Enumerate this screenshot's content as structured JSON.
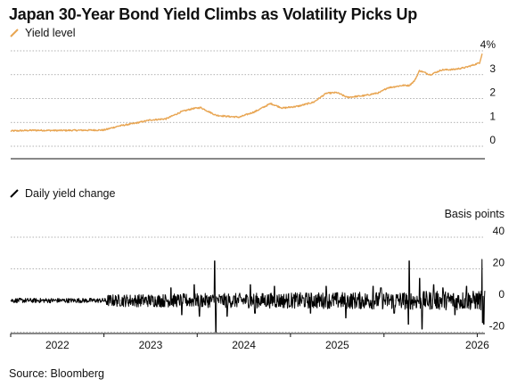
{
  "title": "Japan 30-Year Bond Yield Climbs as Volatility Picks Up",
  "source": "Source: Bloomberg",
  "chart_data": [
    {
      "type": "line",
      "legend": "Yield level",
      "color": "#e8a552",
      "y_ticks": [
        "4%",
        "3",
        "2",
        "1",
        "0"
      ],
      "y_tick_values": [
        4,
        3,
        2,
        1,
        0
      ],
      "ylim": [
        0,
        4
      ],
      "xlim": [
        "2021-01-01",
        "2026-01-31"
      ],
      "series": [
        {
          "points": [
            [
              "2021-01-01",
              0.64
            ],
            [
              "2021-04-01",
              0.67
            ],
            [
              "2021-07-01",
              0.66
            ],
            [
              "2021-10-01",
              0.67
            ],
            [
              "2022-01-01",
              0.68
            ],
            [
              "2022-03-01",
              0.85
            ],
            [
              "2022-05-01",
              0.96
            ],
            [
              "2022-07-01",
              1.1
            ],
            [
              "2022-09-01",
              1.15
            ],
            [
              "2022-11-01",
              1.45
            ],
            [
              "2022-12-15",
              1.58
            ],
            [
              "2023-01-15",
              1.62
            ],
            [
              "2023-03-15",
              1.3
            ],
            [
              "2023-05-01",
              1.25
            ],
            [
              "2023-06-15",
              1.22
            ],
            [
              "2023-08-15",
              1.45
            ],
            [
              "2023-10-15",
              1.79
            ],
            [
              "2023-12-01",
              1.6
            ],
            [
              "2024-02-01",
              1.68
            ],
            [
              "2024-04-01",
              1.85
            ],
            [
              "2024-05-20",
              2.22
            ],
            [
              "2024-07-01",
              2.25
            ],
            [
              "2024-08-10",
              2.05
            ],
            [
              "2024-10-15",
              2.12
            ],
            [
              "2024-12-15",
              2.25
            ],
            [
              "2025-01-15",
              2.45
            ],
            [
              "2025-03-15",
              2.55
            ],
            [
              "2025-04-10",
              2.55
            ],
            [
              "2025-05-01",
              2.75
            ],
            [
              "2025-05-20",
              3.17
            ],
            [
              "2025-07-01",
              3.0
            ],
            [
              "2025-08-15",
              3.2
            ],
            [
              "2025-10-01",
              3.22
            ],
            [
              "2025-11-15",
              3.3
            ],
            [
              "2025-12-15",
              3.4
            ],
            [
              "2026-01-10",
              3.5
            ],
            [
              "2026-01-20",
              3.88
            ]
          ]
        }
      ]
    },
    {
      "type": "line",
      "legend": "Daily yield change",
      "color": "#000000",
      "unit_label": "Basis points",
      "y_ticks": [
        "40",
        "20",
        "0",
        "-20"
      ],
      "y_tick_values": [
        40,
        20,
        0,
        -20
      ],
      "ylim": [
        -20,
        40
      ],
      "x_ticks": [
        "2022",
        "2023",
        "2024",
        "2025",
        "2026"
      ],
      "series": [
        {
          "base_amplitude": 2.5,
          "spikes": [
            [
              "2022-09-20",
              8
            ],
            [
              "2022-11-02",
              -9
            ],
            [
              "2022-12-20",
              10
            ],
            [
              "2023-01-10",
              -10
            ],
            [
              "2023-03-10",
              25
            ],
            [
              "2023-03-15",
              -20
            ],
            [
              "2023-04-28",
              -10
            ],
            [
              "2023-07-28",
              10
            ],
            [
              "2023-08-15",
              -8
            ],
            [
              "2023-10-30",
              9
            ],
            [
              "2024-03-19",
              -8
            ],
            [
              "2024-05-20",
              9
            ],
            [
              "2024-08-05",
              -11
            ],
            [
              "2024-11-20",
              9
            ],
            [
              "2024-12-20",
              8
            ],
            [
              "2025-02-10",
              -8
            ],
            [
              "2025-04-07",
              -15
            ],
            [
              "2025-04-10",
              25
            ],
            [
              "2025-05-20",
              14
            ],
            [
              "2025-05-30",
              -18
            ],
            [
              "2025-07-15",
              10
            ],
            [
              "2025-08-20",
              8
            ],
            [
              "2025-10-06",
              -9
            ],
            [
              "2025-11-20",
              9
            ],
            [
              "2026-01-20",
              26
            ],
            [
              "2026-01-22",
              -14
            ],
            [
              "2026-01-27",
              -15
            ]
          ]
        }
      ]
    }
  ]
}
